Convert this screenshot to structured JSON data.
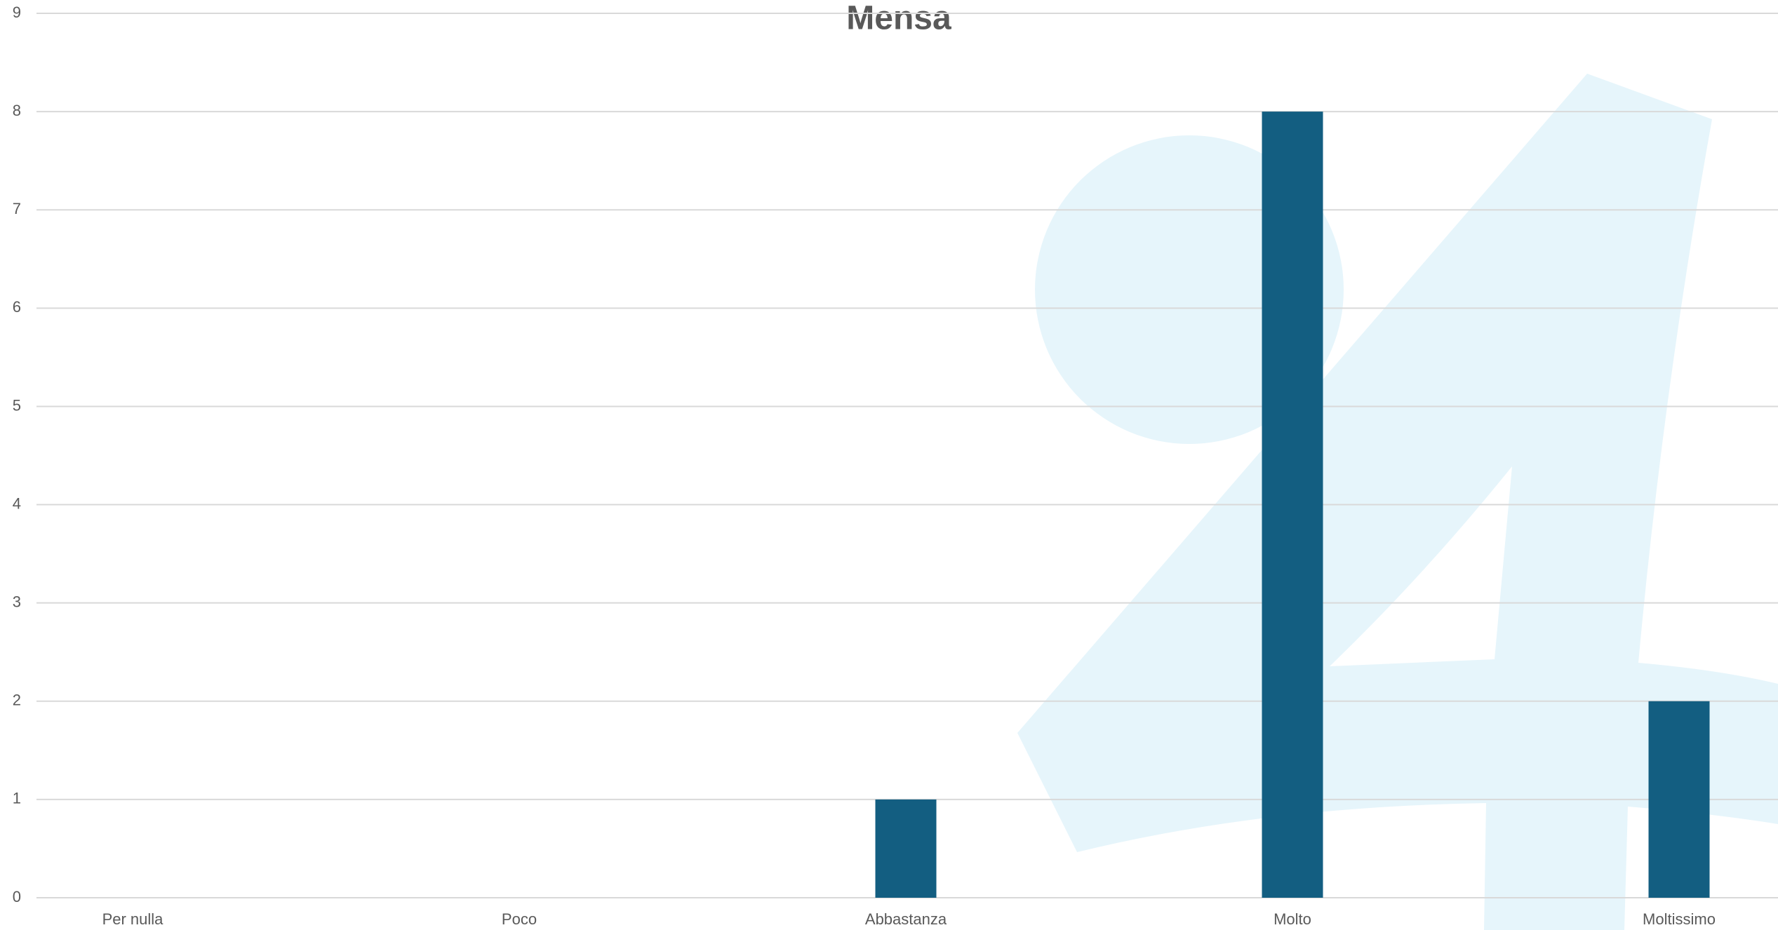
{
  "chart_data": {
    "type": "bar",
    "title": "Mensa",
    "categories": [
      "Per nulla",
      "Poco",
      "Abbastanza",
      "Molto",
      "Moltissimo"
    ],
    "values": [
      0,
      0,
      1,
      8,
      2
    ],
    "color": "#135e81",
    "ylim": [
      0,
      9
    ],
    "yticks": [
      0,
      1,
      2,
      3,
      4,
      5,
      6,
      7,
      8,
      9
    ],
    "grid": true
  }
}
